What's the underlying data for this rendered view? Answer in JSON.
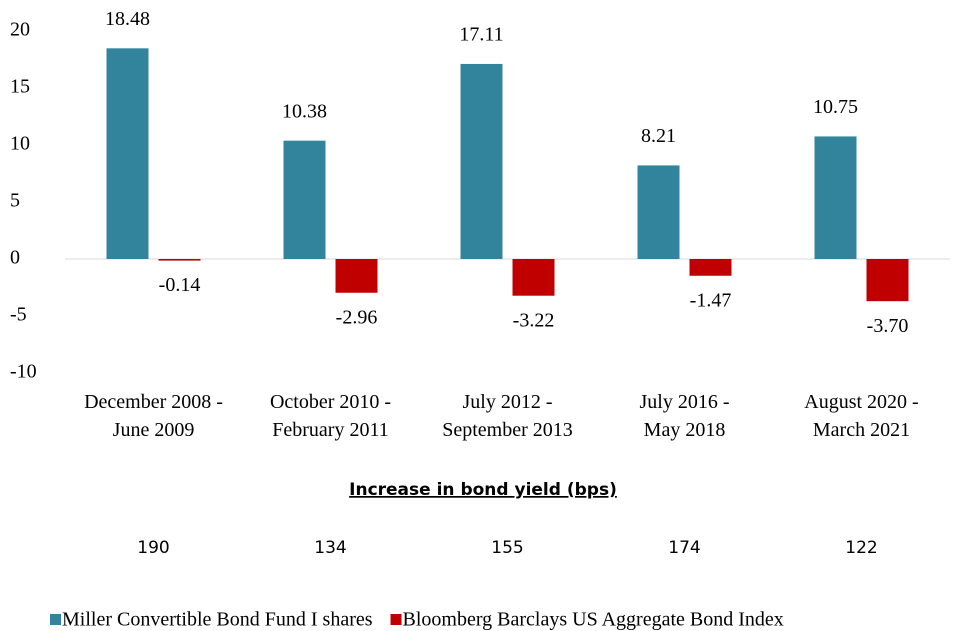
{
  "chart_data": {
    "type": "bar",
    "categories": [
      [
        "December 2008 -",
        "June 2009"
      ],
      [
        "October 2010 -",
        "February 2011"
      ],
      [
        "July 2012 -",
        "September 2013"
      ],
      [
        "July 2016 -",
        "May 2018"
      ],
      [
        "August 2020 -",
        "March 2021"
      ]
    ],
    "series": [
      {
        "name": "Miller Convertible Bond Fund I shares",
        "color": "#31849b",
        "values": [
          18.48,
          10.38,
          17.11,
          8.21,
          10.75
        ],
        "value_labels": [
          "18.48",
          "10.38",
          "17.11",
          "8.21",
          "10.75"
        ]
      },
      {
        "name": "Bloomberg Barclays US Aggregate Bond Index",
        "color": "#c00000",
        "values": [
          -0.14,
          -2.96,
          -3.22,
          -1.47,
          -3.7
        ],
        "value_labels": [
          "-0.14",
          "-2.96",
          "-3.22",
          "-1.47",
          "-3.70"
        ]
      }
    ],
    "ylim": [
      -10,
      20
    ],
    "yticks": [
      -10,
      -5,
      0,
      5,
      10,
      15,
      20
    ],
    "legend": "bottom"
  },
  "bond_yield_increase": {
    "label": "Increase in bond yield (bps)",
    "values": [
      "190",
      "134",
      "155",
      "174",
      "122"
    ]
  }
}
